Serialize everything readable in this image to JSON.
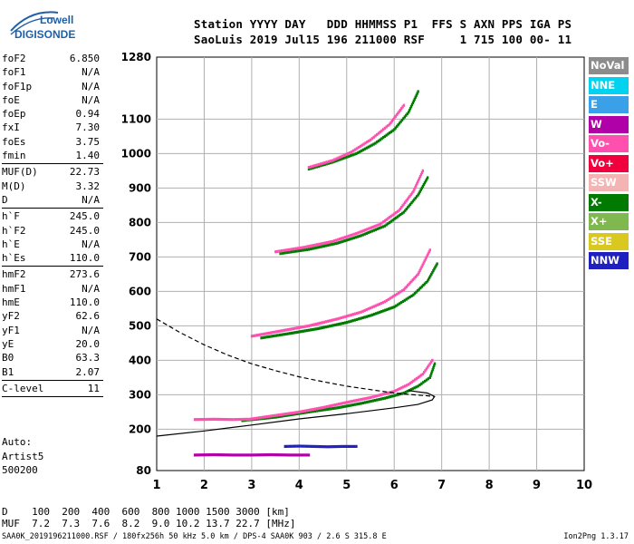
{
  "logo": {
    "line1": "Lowell",
    "line2": "DIGISONDE",
    "color": "#1f5fa8"
  },
  "header": {
    "line1": "Station YYYY DAY   DDD HHMMSS P1  FFS S AXN PPS IGA PS",
    "line2": "SaoLuis 2019 Jul15 196 211000 RSF     1 715 100 00- 11"
  },
  "params": [
    {
      "name": "foF2",
      "value": "6.850"
    },
    {
      "name": "foF1",
      "value": "N/A"
    },
    {
      "name": "foF1p",
      "value": "N/A"
    },
    {
      "name": "foE",
      "value": "N/A"
    },
    {
      "name": "foEp",
      "value": "0.94"
    },
    {
      "name": "fxI",
      "value": "7.30"
    },
    {
      "name": "foEs",
      "value": "3.75"
    },
    {
      "name": "fmin",
      "value": "1.40",
      "sep": true
    },
    {
      "name": "MUF(D)",
      "value": "22.73"
    },
    {
      "name": "M(D)",
      "value": "3.32"
    },
    {
      "name": "D",
      "value": "N/A",
      "sep": true
    },
    {
      "name": "h`F",
      "value": "245.0"
    },
    {
      "name": "h`F2",
      "value": "245.0"
    },
    {
      "name": "h`E",
      "value": "N/A"
    },
    {
      "name": "h`Es",
      "value": "110.0",
      "sep": true
    },
    {
      "name": "hmF2",
      "value": "273.6"
    },
    {
      "name": "hmF1",
      "value": "N/A"
    },
    {
      "name": "hmE",
      "value": "110.0"
    },
    {
      "name": "yF2",
      "value": "62.6"
    },
    {
      "name": "yF1",
      "value": "N/A"
    },
    {
      "name": "yE",
      "value": "20.0"
    },
    {
      "name": "B0",
      "value": "63.3"
    },
    {
      "name": "B1",
      "value": "2.07",
      "sep": true
    },
    {
      "name": "C-level",
      "value": "11",
      "sep": true
    }
  ],
  "auto": [
    "Auto:",
    "Artist5",
    "500200"
  ],
  "legend": [
    {
      "label": "NoVal",
      "color": "#8c8c8c"
    },
    {
      "label": "NNE",
      "color": "#00d2f0"
    },
    {
      "label": "E",
      "color": "#3aa0e8"
    },
    {
      "label": "W",
      "color": "#b000a8"
    },
    {
      "label": "Vo-",
      "color": "#ff50b0"
    },
    {
      "label": "Vo+",
      "color": "#f0003c"
    },
    {
      "label": "SSW",
      "color": "#f4b4b4"
    },
    {
      "label": "X-",
      "color": "#007a00"
    },
    {
      "label": "X+",
      "color": "#80b850"
    },
    {
      "label": "SSE",
      "color": "#d8c820"
    },
    {
      "label": "NNW",
      "color": "#2020c0"
    }
  ],
  "dmuf": {
    "line1": "D    100  200  400  600  800 1000 1500 3000 [km]",
    "line2": "MUF  7.2  7.3  7.6  8.2  9.0 10.2 13.7 22.7 [MHz]"
  },
  "footer": "SAA0K_2019196211000.RSF / 180fx256h 50 kHz 5.0 km / DPS-4 SAA0K 903 / 2.6 S 315.8 E",
  "version": "Ion2Png 1.3.17",
  "chart_data": {
    "type": "scatter",
    "xlim": [
      1,
      10
    ],
    "ylim": [
      80,
      1280
    ],
    "x_ticks": [
      "1",
      "2",
      "3",
      "4",
      "5",
      "6",
      "7",
      "8",
      "9",
      "10"
    ],
    "y_ticks": [
      "80",
      "200",
      "300",
      "400",
      "500",
      "600",
      "700",
      "800",
      "900",
      "1000",
      "1100",
      "1280"
    ],
    "grid": true,
    "series": [
      {
        "color": "#007a00",
        "x": [
          2.8,
          3.5,
          4.2,
          4.8,
          5.3,
          5.8,
          6.2,
          6.5,
          6.75,
          6.85
        ],
        "y": [
          225,
          235,
          250,
          262,
          275,
          290,
          305,
          325,
          350,
          390
        ]
      },
      {
        "color": "#ff50b0",
        "x": [
          2.9,
          3.4,
          4.0,
          4.5,
          5.0,
          5.5,
          6.0,
          6.3,
          6.6,
          6.8
        ],
        "y": [
          228,
          238,
          250,
          263,
          278,
          292,
          310,
          330,
          360,
          400
        ]
      },
      {
        "color": "#007a00",
        "x": [
          3.2,
          3.8,
          4.4,
          5.0,
          5.5,
          6.0,
          6.4,
          6.7,
          6.9
        ],
        "y": [
          465,
          478,
          492,
          510,
          530,
          555,
          590,
          630,
          680
        ]
      },
      {
        "color": "#ff50b0",
        "x": [
          3.0,
          3.6,
          4.2,
          4.8,
          5.3,
          5.8,
          6.2,
          6.5,
          6.75
        ],
        "y": [
          470,
          485,
          500,
          520,
          540,
          570,
          605,
          650,
          720
        ]
      },
      {
        "color": "#007a00",
        "x": [
          3.6,
          4.2,
          4.8,
          5.3,
          5.8,
          6.2,
          6.5,
          6.7
        ],
        "y": [
          710,
          722,
          740,
          762,
          790,
          830,
          880,
          930
        ]
      },
      {
        "color": "#ff50b0",
        "x": [
          3.5,
          4.1,
          4.7,
          5.2,
          5.7,
          6.1,
          6.4,
          6.6
        ],
        "y": [
          715,
          728,
          745,
          768,
          795,
          835,
          890,
          950
        ]
      },
      {
        "color": "#007a00",
        "x": [
          4.2,
          4.7,
          5.2,
          5.6,
          6.0,
          6.3,
          6.5
        ],
        "y": [
          955,
          975,
          1000,
          1030,
          1070,
          1120,
          1180
        ]
      },
      {
        "color": "#ff50b0",
        "x": [
          4.2,
          4.7,
          5.1,
          5.5,
          5.9,
          6.2
        ],
        "y": [
          960,
          980,
          1005,
          1040,
          1085,
          1140
        ]
      },
      {
        "color": "#2020c0",
        "x": [
          3.7,
          4.0,
          4.3,
          4.6,
          4.9,
          5.2
        ],
        "y": [
          150,
          151,
          150,
          149,
          150,
          150
        ]
      },
      {
        "color": "#b000a8",
        "x": [
          1.8,
          2.2,
          2.6,
          3.0,
          3.4,
          3.8,
          4.2
        ],
        "y": [
          125,
          126,
          125,
          125,
          126,
          125,
          125
        ]
      },
      {
        "color": "#ff50b0",
        "x": [
          1.8,
          2.2,
          2.6,
          2.9
        ],
        "y": [
          228,
          229,
          228,
          229
        ]
      }
    ],
    "profile_solid": {
      "x": [
        1.0,
        2.0,
        3.0,
        4.0,
        5.0,
        6.0,
        6.5,
        6.8,
        6.85,
        6.7,
        6.3
      ],
      "y": [
        180,
        195,
        212,
        230,
        245,
        262,
        272,
        285,
        295,
        305,
        312
      ]
    },
    "profile_dashed": {
      "x": [
        1.0,
        1.5,
        2.0,
        2.5,
        3.0,
        3.5,
        4.0,
        4.5,
        5.0,
        5.5,
        6.0,
        6.4,
        6.7,
        6.85
      ],
      "y": [
        520,
        480,
        445,
        415,
        390,
        370,
        352,
        338,
        325,
        315,
        305,
        300,
        297,
        295
      ]
    }
  }
}
